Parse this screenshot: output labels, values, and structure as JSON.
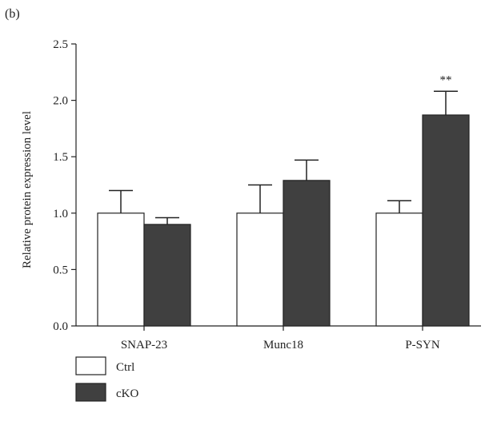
{
  "panel_label": "(b)",
  "chart_data": {
    "type": "bar",
    "categories": [
      "SNAP-23",
      "Munc18",
      "P-SYN"
    ],
    "series": [
      {
        "name": "Ctrl",
        "values": [
          1.0,
          1.0,
          1.0
        ],
        "errors": [
          0.2,
          0.25,
          0.11
        ],
        "color": "#ffffff"
      },
      {
        "name": "cKO",
        "values": [
          0.9,
          1.29,
          1.87
        ],
        "errors": [
          0.06,
          0.18,
          0.21
        ],
        "color": "#404040"
      }
    ],
    "annotations": [
      {
        "category": "P-SYN",
        "series": "cKO",
        "text": "**"
      }
    ],
    "xlabel": "",
    "ylabel": "Relative protein expression level",
    "ylim": [
      0,
      2.5
    ],
    "yticks": [
      0.0,
      0.5,
      1.0,
      1.5,
      2.0,
      2.5
    ],
    "ytick_labels": [
      "0.0",
      "0.5",
      "1.0",
      "1.5",
      "2.0",
      "2.5"
    ],
    "grid": false,
    "legend_position": "bottom-left"
  }
}
